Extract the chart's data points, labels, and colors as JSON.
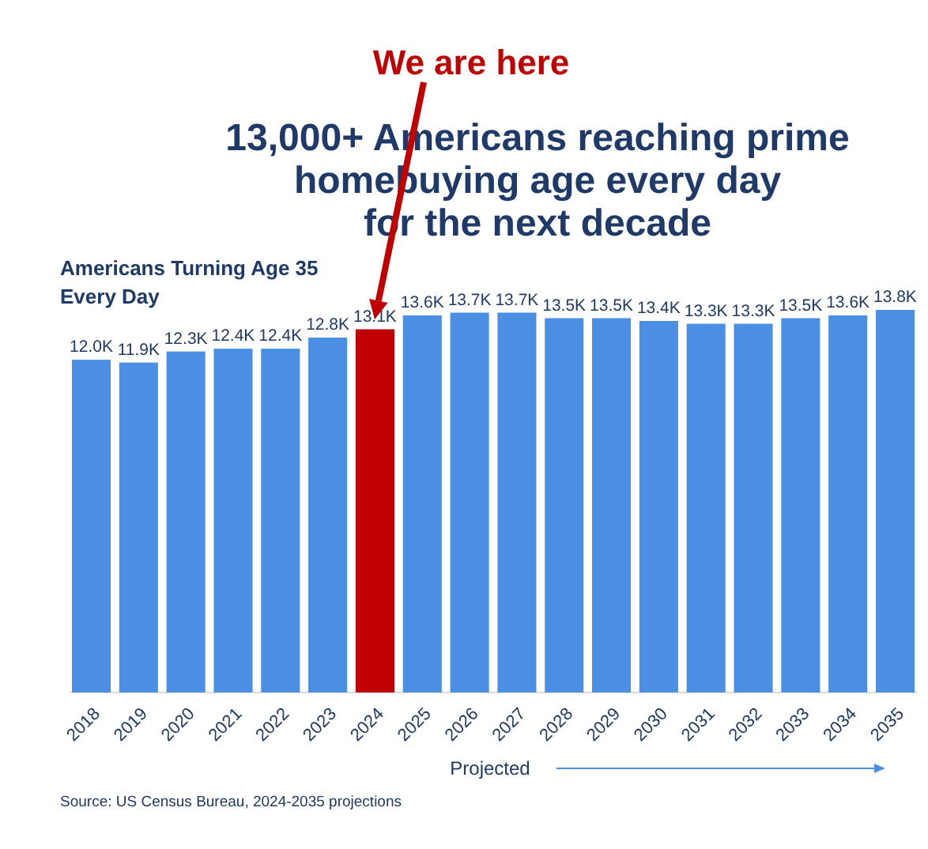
{
  "chart_data": {
    "type": "bar",
    "title": "13,000+ Americans reaching prime\nhomebuying age every day\nfor the next decade",
    "subtitle": "Americans Turning Age 35\nEvery Day",
    "categories": [
      "2018",
      "2019",
      "2020",
      "2021",
      "2022",
      "2023",
      "2024",
      "2025",
      "2026",
      "2027",
      "2028",
      "2029",
      "2030",
      "2031",
      "2032",
      "2033",
      "2034",
      "2035"
    ],
    "values": [
      12.0,
      11.9,
      12.3,
      12.4,
      12.4,
      12.8,
      13.1,
      13.6,
      13.7,
      13.7,
      13.5,
      13.5,
      13.4,
      13.3,
      13.3,
      13.5,
      13.6,
      13.8
    ],
    "value_labels": [
      "12.0K",
      "11.9K",
      "12.3K",
      "12.4K",
      "12.4K",
      "12.8K",
      "13.1K",
      "13.6K",
      "13.7K",
      "13.7K",
      "13.5K",
      "13.5K",
      "13.4K",
      "13.3K",
      "13.3K",
      "13.5K",
      "13.6K",
      "13.8K"
    ],
    "colors": [
      "#4a8fe3",
      "#4a8fe3",
      "#4a8fe3",
      "#4a8fe3",
      "#4a8fe3",
      "#4a8fe3",
      "#c00000",
      "#4a8fe3",
      "#4a8fe3",
      "#4a8fe3",
      "#4a8fe3",
      "#4a8fe3",
      "#4a8fe3",
      "#4a8fe3",
      "#4a8fe3",
      "#4a8fe3",
      "#4a8fe3",
      "#4a8fe3"
    ],
    "annotations": [
      "We are here",
      "Projected",
      "Source: US Census Bureau, 2024-2035 projections"
    ]
  }
}
